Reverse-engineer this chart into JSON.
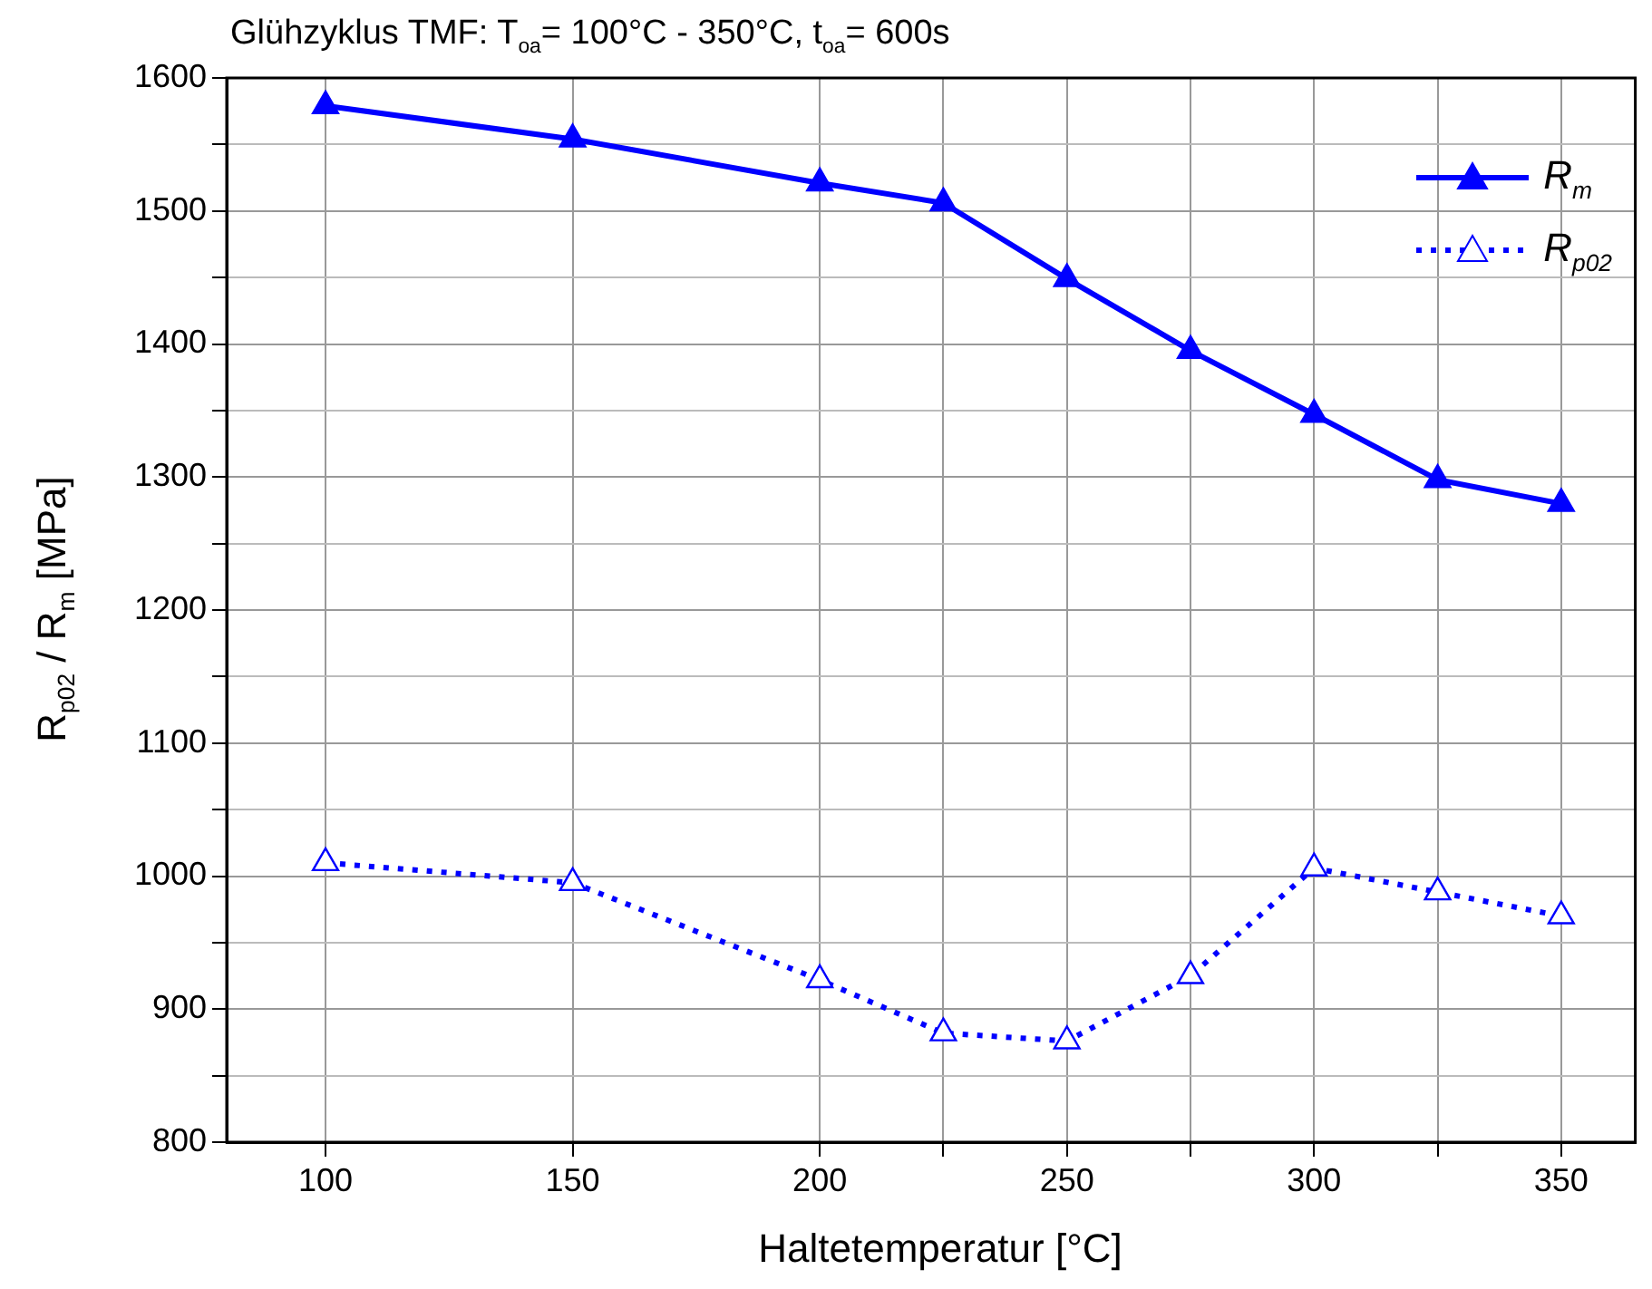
{
  "chart_data": {
    "type": "line",
    "title": "Glühzyklus TMF: T$_{oa}$= 100°C - 350°C, t$_{oa}$= 600s",
    "xlabel": "Haltetemperatur [°C]",
    "ylabel": "R$_{p02}$ / R$_{m}$ [MPa]",
    "x": [
      100,
      150,
      200,
      225,
      250,
      275,
      300,
      325,
      350
    ],
    "series": [
      {
        "name": "R$_{m}$",
        "color": "#0000ff",
        "line_style": "solid",
        "values": [
          1579,
          1554,
          1521,
          1506,
          1449,
          1395,
          1347,
          1298,
          1280
        ]
      },
      {
        "name": "R$_{p02}$",
        "color": "#0000ff",
        "line_style": "dotted",
        "values": [
          1010,
          995,
          922,
          882,
          876,
          925,
          1006,
          988,
          970
        ]
      }
    ],
    "xlim": [
      80,
      365
    ],
    "xticks": [
      100,
      150,
      200,
      {
        "value": 225,
        "label": null
      },
      250,
      {
        "value": 275,
        "label": null
      },
      300,
      {
        "value": 325,
        "label": null
      },
      350
    ],
    "ylim": [
      800,
      1600
    ],
    "yticks": [
      800,
      {
        "value": 850,
        "label": null
      },
      900,
      {
        "value": 950,
        "label": null
      },
      1000,
      {
        "value": 1050,
        "label": null
      },
      1100,
      {
        "value": 1150,
        "label": null
      },
      1200,
      {
        "value": 1250,
        "label": null
      },
      1300,
      {
        "value": 1350,
        "label": null
      },
      1400,
      {
        "value": 1450,
        "label": null
      },
      1500,
      {
        "value": 1550,
        "label": null
      },
      1600
    ],
    "grid": true,
    "legend": "top right",
    "marker": "triangle"
  }
}
